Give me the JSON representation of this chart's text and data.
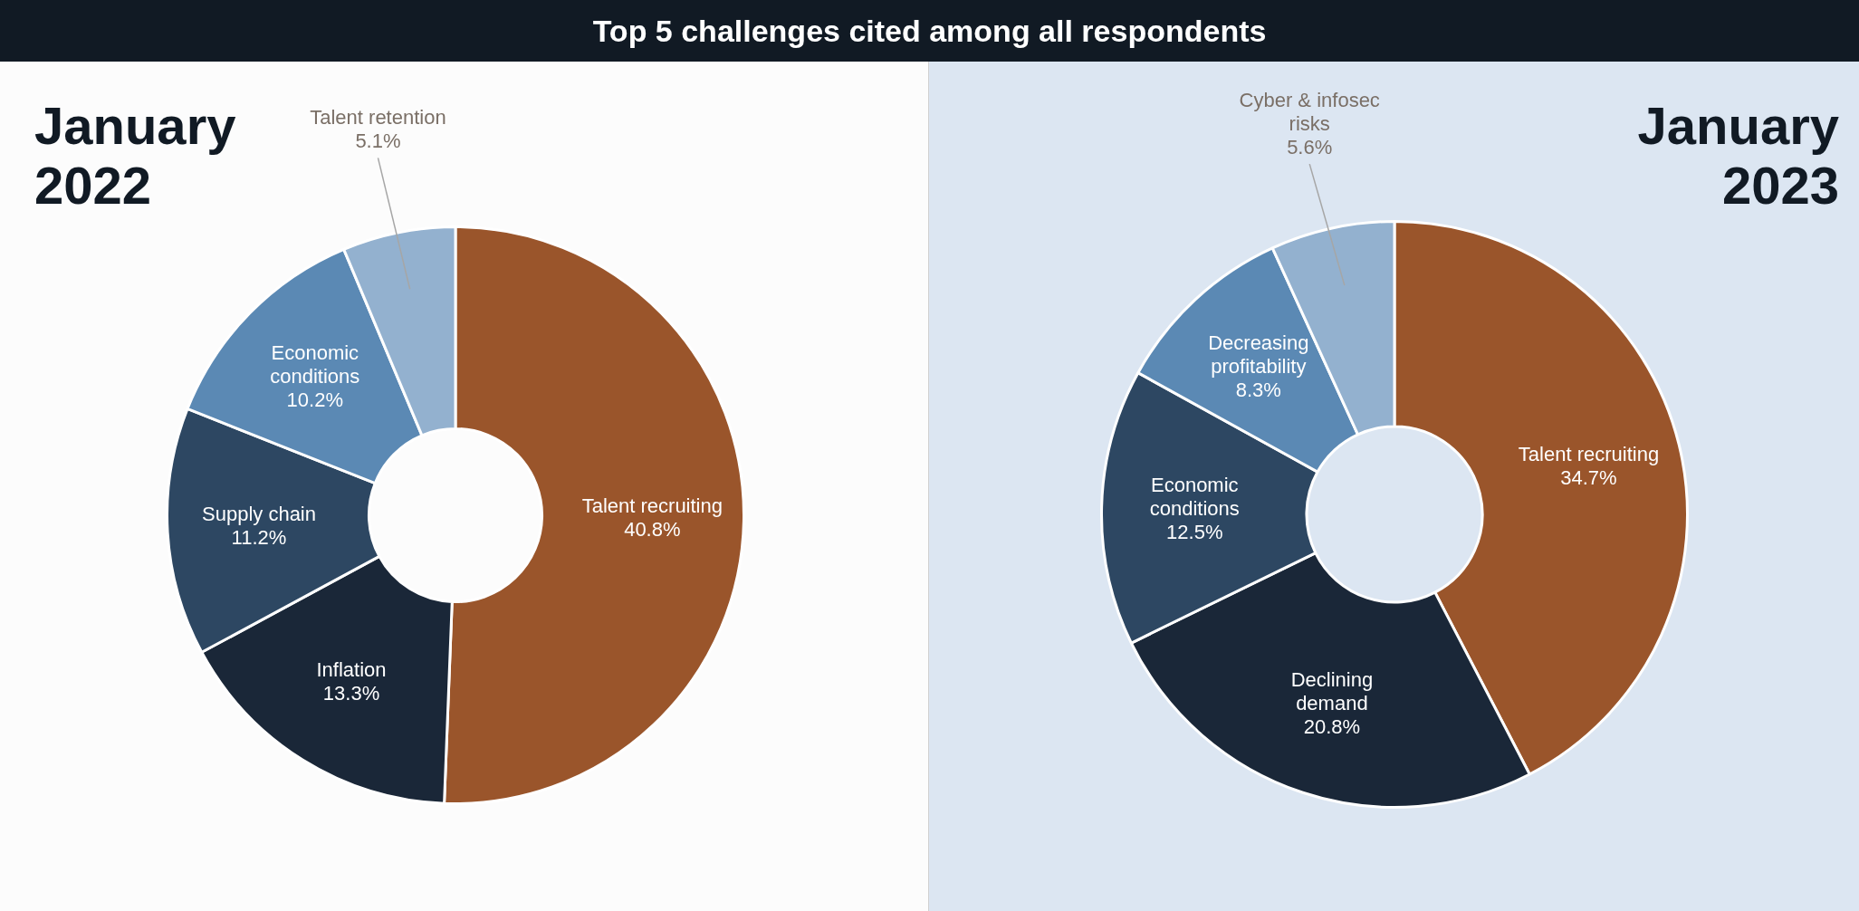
{
  "chart_data": [
    {
      "type": "donut",
      "title": "Top 5 challenges cited among all respondents",
      "subtitle": "January 2022",
      "categories": [
        "Talent recruiting",
        "Inflation",
        "Supply chain",
        "Economic conditions",
        "Talent retention"
      ],
      "values": [
        40.8,
        13.3,
        11.2,
        10.2,
        5.1
      ],
      "colors": [
        "#9a552b",
        "#1a2738",
        "#2d4762",
        "#5b89b4",
        "#93b1cf"
      ],
      "value_labels": [
        "40.8%",
        "13.3%",
        "11.2%",
        "10.2%",
        "5.1%"
      ]
    },
    {
      "type": "donut",
      "title": "January 2023",
      "categories": [
        "Talent recruiting",
        "Declining demand",
        "Economic conditions",
        "Decreasing profitability",
        "Cyber & infosec risks"
      ],
      "values": [
        34.7,
        20.8,
        12.5,
        8.3,
        5.6
      ],
      "colors": [
        "#9a552b",
        "#1a2738",
        "#2d4762",
        "#5b89b4",
        "#93b1cf"
      ],
      "value_labels": [
        "34.7%",
        "20.8%",
        "12.5%",
        "8.3%",
        "5.6%"
      ]
    }
  ]
}
